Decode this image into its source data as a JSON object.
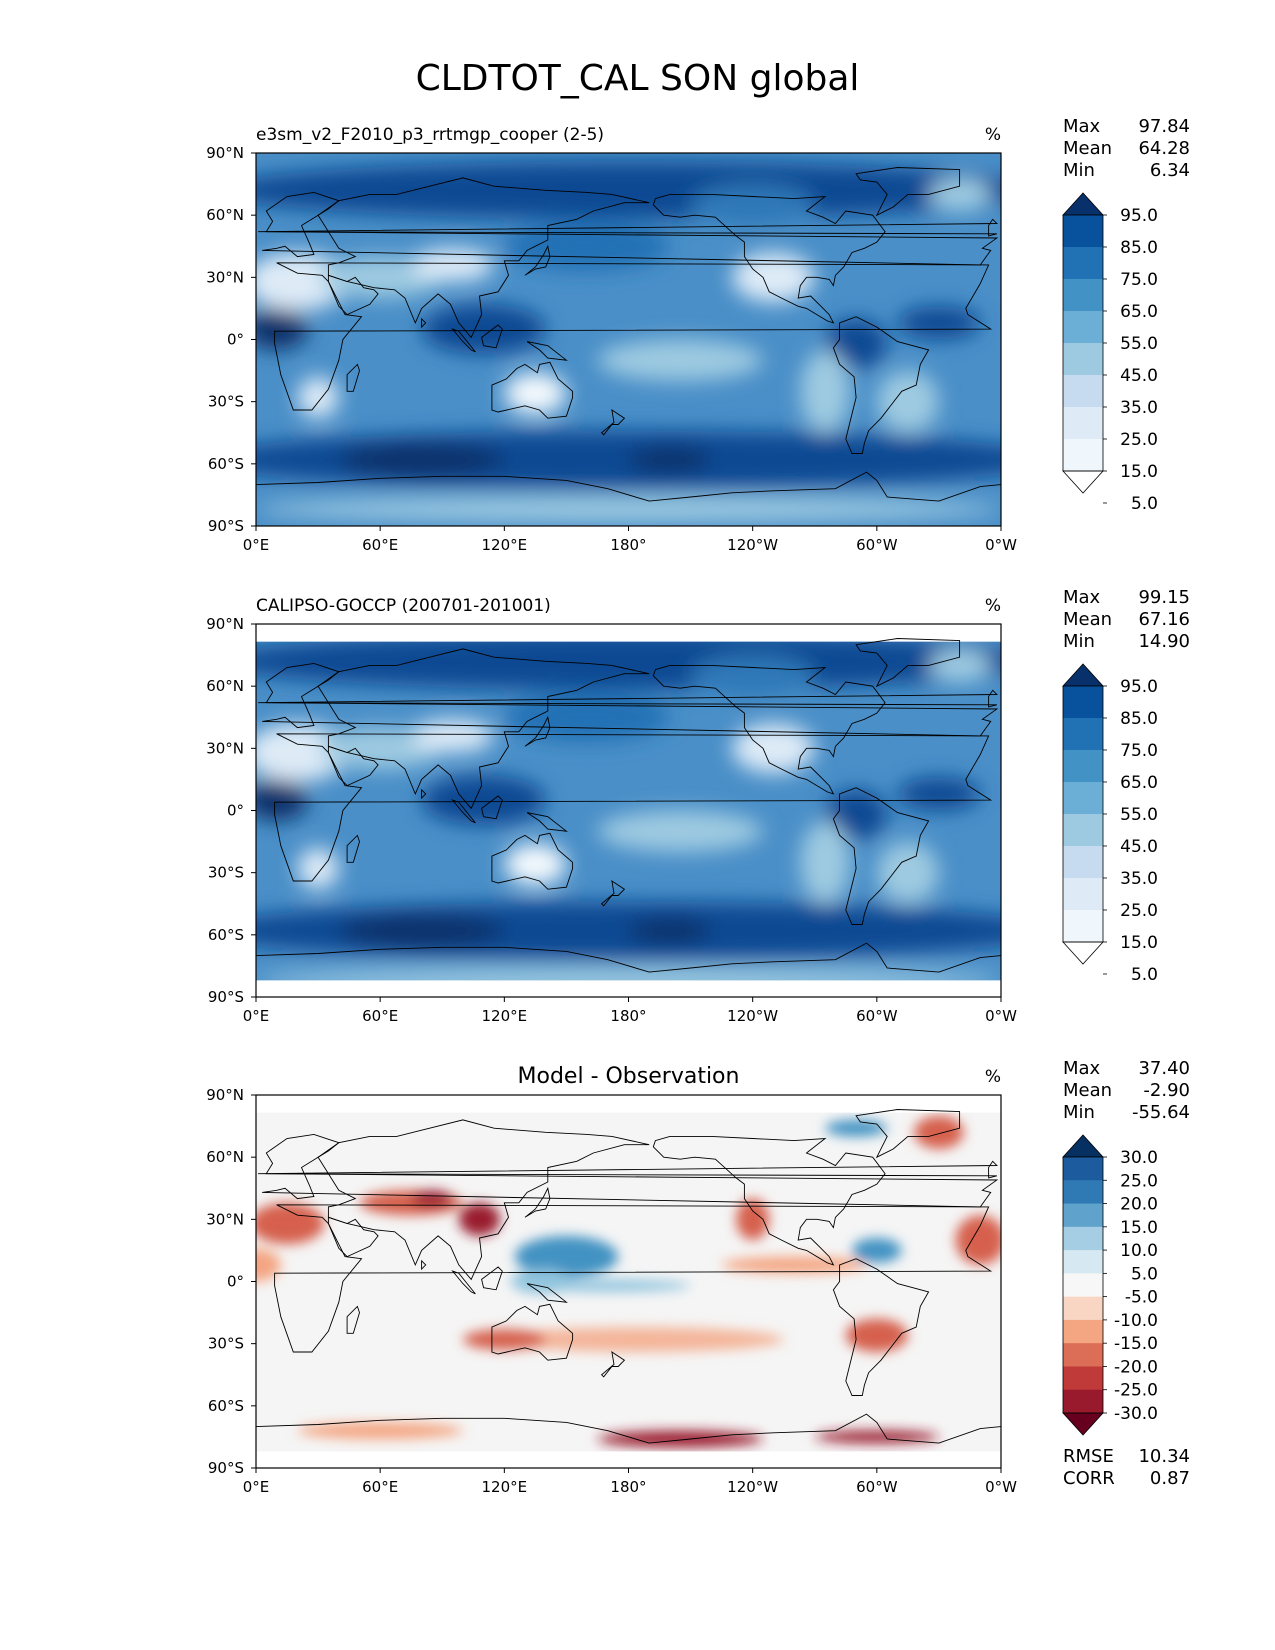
{
  "figure": {
    "title": "CLDTOT_CAL SON global"
  },
  "axes": {
    "lat_ticks": [
      "90°N",
      "60°N",
      "30°N",
      "0°",
      "30°S",
      "60°S",
      "90°S"
    ],
    "lon_ticks": [
      "0°E",
      "60°E",
      "120°E",
      "180°",
      "120°W",
      "60°W",
      "0°W"
    ]
  },
  "panels": [
    {
      "id": "model",
      "left_title": "e3sm_v2_F2010_p3_rrtmgp_cooper (2-5)",
      "center_title": "",
      "units": "%",
      "stats": [
        {
          "label": "Max",
          "value": "97.84"
        },
        {
          "label": "Mean",
          "value": "64.28"
        },
        {
          "label": "Min",
          "value": "6.34"
        }
      ],
      "colorbar": {
        "labels": [
          "95.0",
          "85.0",
          "75.0",
          "65.0",
          "55.0",
          "45.0",
          "35.0",
          "25.0",
          "15.0",
          "5.0"
        ],
        "colors": [
          "#08306b",
          "#08519c",
          "#2171b5",
          "#4292c6",
          "#6baed6",
          "#9ecae1",
          "#c6dbef",
          "#deebf7",
          "#eff6fc",
          "#ffffff"
        ]
      },
      "extra_stats": []
    },
    {
      "id": "obs",
      "left_title": "CALIPSO-GOCCP (200701-201001)",
      "center_title": "",
      "units": "%",
      "stats": [
        {
          "label": "Max",
          "value": "99.15"
        },
        {
          "label": "Mean",
          "value": "67.16"
        },
        {
          "label": "Min",
          "value": "14.90"
        }
      ],
      "colorbar": {
        "labels": [
          "95.0",
          "85.0",
          "75.0",
          "65.0",
          "55.0",
          "45.0",
          "35.0",
          "25.0",
          "15.0",
          "5.0"
        ],
        "colors": [
          "#08306b",
          "#08519c",
          "#2171b5",
          "#4292c6",
          "#6baed6",
          "#9ecae1",
          "#c6dbef",
          "#deebf7",
          "#eff6fc",
          "#ffffff"
        ]
      },
      "extra_stats": []
    },
    {
      "id": "diff",
      "left_title": "",
      "center_title": "Model - Observation",
      "units": "%",
      "stats": [
        {
          "label": "Max",
          "value": "37.40"
        },
        {
          "label": "Mean",
          "value": "-2.90"
        },
        {
          "label": "Min",
          "value": "-55.64"
        }
      ],
      "colorbar": {
        "labels": [
          "30.0",
          "25.0",
          "20.0",
          "15.0",
          "10.0",
          "5.0",
          "-5.0",
          "-10.0",
          "-15.0",
          "-20.0",
          "-25.0",
          "-30.0"
        ],
        "colors": [
          "#053061",
          "#1c5c9e",
          "#2f79b5",
          "#5fa2cb",
          "#a5cde3",
          "#d6e8f1",
          "#f7f7f7",
          "#f9d6c4",
          "#f4a582",
          "#dc6e57",
          "#c03a3a",
          "#9a1a2d",
          "#67001f"
        ]
      },
      "extra_stats": [
        {
          "label": "RMSE",
          "value": "10.34"
        },
        {
          "label": "CORR",
          "value": "0.87"
        }
      ]
    }
  ]
}
